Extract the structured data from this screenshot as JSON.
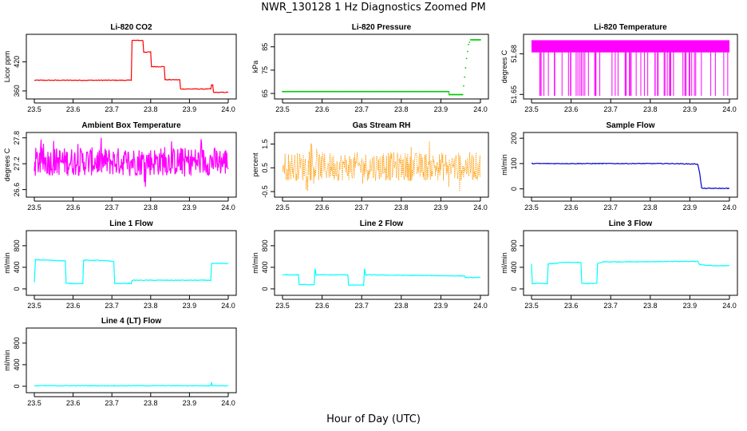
{
  "title": "NWR_130128  1 Hz Diagnostics Zoomed PM",
  "xlabel": "Hour of Day (UTC)",
  "chart_data": [
    {
      "type": "line",
      "title": "Li-820 CO2",
      "ylabel": "Licor ppm",
      "color": "#ff0000",
      "xlim": [
        23.5,
        24.0
      ],
      "xticks": [
        23.5,
        23.6,
        23.7,
        23.8,
        23.9,
        24.0
      ],
      "ylim": [
        350,
        470
      ],
      "yticks": [
        360,
        420
      ],
      "series": [
        {
          "x": [
            23.5,
            23.75,
            23.752,
            23.78,
            23.782,
            23.8,
            23.802,
            23.835,
            23.837,
            23.875,
            23.877,
            23.955,
            23.957,
            23.96,
            23.962,
            24.0
          ],
          "values": [
            382,
            382,
            464,
            464,
            440,
            440,
            410,
            410,
            383,
            383,
            364,
            364,
            372,
            372,
            357,
            357
          ]
        }
      ]
    },
    {
      "type": "scatter",
      "title": "Li-820 Pressure",
      "ylabel": "kPa",
      "color": "#00cc00",
      "xlim": [
        23.5,
        24.0
      ],
      "xticks": [
        23.5,
        23.6,
        23.7,
        23.8,
        23.9,
        24.0
      ],
      "ylim": [
        64,
        89
      ],
      "yticks": [
        65,
        75,
        85
      ],
      "series": [
        {
          "x": [
            23.5,
            23.92,
            23.921,
            23.955,
            23.96,
            23.965,
            23.97,
            23.975,
            23.98,
            24.0
          ],
          "values": [
            65.8,
            65.8,
            64.5,
            64.5,
            72,
            80,
            86,
            88,
            88,
            88
          ]
        }
      ]
    },
    {
      "type": "line",
      "title": "Li-820 Temperature",
      "ylabel": "degrees C",
      "color": "#ff00ff",
      "xlim": [
        23.5,
        24.0
      ],
      "xticks": [
        23.5,
        23.6,
        23.7,
        23.8,
        23.9,
        24.0
      ],
      "ylim": [
        51.649,
        51.692
      ],
      "yticks": [
        51.65,
        51.68
      ],
      "series": [
        {
          "range": [
            51.649,
            51.69
          ],
          "level": 51.681
        }
      ]
    },
    {
      "type": "line",
      "title": "Ambient Box Temperature",
      "ylabel": "degrees C",
      "color": "#ff00ff",
      "xlim": [
        23.5,
        24.0
      ],
      "xticks": [
        23.5,
        23.6,
        23.7,
        23.8,
        23.9,
        24.0
      ],
      "ylim": [
        26.5,
        27.85
      ],
      "yticks": [
        26.6,
        27.2,
        27.8
      ],
      "series": [
        {
          "mean": 27.25,
          "range": [
            26.55,
            27.75
          ]
        }
      ]
    },
    {
      "type": "scatter",
      "title": "Gas Stream RH",
      "ylabel": "percent",
      "color": "#ff9900",
      "xlim": [
        23.5,
        24.0
      ],
      "xticks": [
        23.5,
        23.6,
        23.7,
        23.8,
        23.9,
        24.0
      ],
      "ylim": [
        -0.6,
        1.85
      ],
      "yticks": [
        -0.5,
        0.5,
        1.5
      ],
      "series": [
        {
          "mean": 0.55,
          "range": [
            -0.45,
            1.75
          ]
        }
      ]
    },
    {
      "type": "line",
      "title": "Sample Flow",
      "ylabel": "ml/min",
      "color": "#0000cc",
      "xlim": [
        23.5,
        24.0
      ],
      "xticks": [
        23.5,
        23.6,
        23.7,
        23.8,
        23.9,
        24.0
      ],
      "ylim": [
        -20,
        210
      ],
      "yticks": [
        0,
        100,
        200
      ],
      "series": [
        {
          "x": [
            23.5,
            23.85,
            23.92,
            23.925,
            23.93,
            24.0
          ],
          "values": [
            100,
            100,
            98,
            60,
            2,
            2
          ]
        }
      ]
    },
    {
      "type": "line",
      "title": "Line 1 Flow",
      "ylabel": "ml/min",
      "color": "#00ffff",
      "xlim": [
        23.5,
        24.0
      ],
      "xticks": [
        23.5,
        23.6,
        23.7,
        23.8,
        23.9,
        24.0
      ],
      "ylim": [
        -60,
        1020
      ],
      "yticks": [
        0,
        400,
        800
      ],
      "series": [
        {
          "x": [
            23.5,
            23.503,
            23.505,
            23.58,
            23.582,
            23.625,
            23.627,
            23.66,
            23.705,
            23.707,
            23.75,
            23.752,
            23.955,
            23.957,
            24.0
          ],
          "values": [
            120,
            540,
            540,
            520,
            100,
            100,
            530,
            530,
            510,
            100,
            100,
            160,
            160,
            470,
            470
          ]
        }
      ]
    },
    {
      "type": "line",
      "title": "Line 2 Flow",
      "ylabel": "ml/min",
      "color": "#00ffff",
      "xlim": [
        23.5,
        24.0
      ],
      "xticks": [
        23.5,
        23.6,
        23.7,
        23.8,
        23.9,
        24.0
      ],
      "ylim": [
        -60,
        1020
      ],
      "yticks": [
        0,
        400,
        800
      ],
      "series": [
        {
          "x": [
            23.5,
            23.54,
            23.542,
            23.58,
            23.582,
            23.585,
            23.665,
            23.667,
            23.705,
            23.707,
            23.71,
            23.96,
            23.962,
            24.0
          ],
          "values": [
            260,
            260,
            80,
            80,
            370,
            260,
            260,
            70,
            70,
            370,
            260,
            240,
            210,
            210
          ]
        }
      ]
    },
    {
      "type": "line",
      "title": "Line 3 Flow",
      "ylabel": "ml/min",
      "color": "#00ffff",
      "xlim": [
        23.5,
        24.0
      ],
      "xticks": [
        23.5,
        23.6,
        23.7,
        23.8,
        23.9,
        24.0
      ],
      "ylim": [
        -60,
        1020
      ],
      "yticks": [
        0,
        400,
        800
      ],
      "series": [
        {
          "x": [
            23.5,
            23.502,
            23.504,
            23.54,
            23.542,
            23.58,
            23.625,
            23.627,
            23.665,
            23.667,
            23.68,
            23.92,
            23.925,
            23.96,
            24.0
          ],
          "values": [
            460,
            100,
            100,
            100,
            460,
            490,
            490,
            100,
            100,
            470,
            500,
            510,
            450,
            430,
            430
          ]
        }
      ]
    },
    {
      "type": "line",
      "title": "Line 4 (LT) Flow",
      "ylabel": "ml/min",
      "color": "#00ffff",
      "xlim": [
        23.5,
        24.0
      ],
      "xticks": [
        23.5,
        23.6,
        23.7,
        23.8,
        23.9,
        24.0
      ],
      "ylim": [
        -60,
        1020
      ],
      "yticks": [
        0,
        400,
        800
      ],
      "series": [
        {
          "x": [
            23.5,
            23.955,
            23.957,
            23.959,
            24.0
          ],
          "values": [
            10,
            10,
            80,
            10,
            10
          ]
        }
      ]
    }
  ]
}
